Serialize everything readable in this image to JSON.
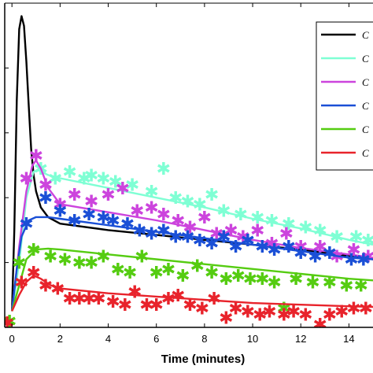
{
  "chart_data": {
    "type": "line",
    "xlabel": "Time (minutes)",
    "xlim": [
      -0.3,
      15
    ],
    "ylim": [
      0,
      100
    ],
    "xticks": [
      0,
      2,
      4,
      6,
      8,
      10,
      12,
      14
    ],
    "grid": false,
    "legend_position": "top-right",
    "series": [
      {
        "name": "C",
        "color": "#000000",
        "line": [
          [
            0,
            5
          ],
          [
            0.1,
            30
          ],
          [
            0.2,
            70
          ],
          [
            0.3,
            92
          ],
          [
            0.4,
            96
          ],
          [
            0.5,
            93
          ],
          [
            0.6,
            82
          ],
          [
            0.7,
            68
          ],
          [
            0.8,
            55
          ],
          [
            0.9,
            47
          ],
          [
            1.0,
            42
          ],
          [
            1.2,
            37
          ],
          [
            1.5,
            34
          ],
          [
            2,
            32
          ],
          [
            4,
            30
          ],
          [
            6,
            28.5
          ],
          [
            8,
            27
          ],
          [
            10,
            25.5
          ],
          [
            12,
            24
          ],
          [
            14,
            22
          ],
          [
            15,
            21
          ]
        ],
        "markers": []
      },
      {
        "name": "C",
        "color": "#7fffd4",
        "line": [
          [
            0,
            5
          ],
          [
            0.3,
            20
          ],
          [
            0.6,
            40
          ],
          [
            0.9,
            48
          ],
          [
            1.1,
            48.5
          ],
          [
            1.5,
            47
          ],
          [
            2,
            46
          ],
          [
            4,
            43
          ],
          [
            6,
            40
          ],
          [
            8,
            37
          ],
          [
            10,
            33.5
          ],
          [
            12,
            30.5
          ],
          [
            14,
            27
          ],
          [
            15,
            25.5
          ]
        ],
        "markers": [
          [
            1.2,
            49
          ],
          [
            1.8,
            46
          ],
          [
            2.4,
            48
          ],
          [
            3.0,
            46
          ],
          [
            3.3,
            47
          ],
          [
            3.8,
            46
          ],
          [
            4.3,
            45
          ],
          [
            5.0,
            44
          ],
          [
            5.8,
            42
          ],
          [
            6.3,
            49
          ],
          [
            6.8,
            40
          ],
          [
            7.3,
            39
          ],
          [
            7.8,
            38
          ],
          [
            8.3,
            41
          ],
          [
            8.8,
            36
          ],
          [
            9.5,
            35
          ],
          [
            10.2,
            34
          ],
          [
            10.8,
            33
          ],
          [
            11.5,
            32
          ],
          [
            12.2,
            31
          ],
          [
            12.8,
            30
          ],
          [
            13.5,
            28
          ],
          [
            14.3,
            28
          ],
          [
            14.8,
            27
          ]
        ]
      },
      {
        "name": "C",
        "color": "#cc44dd",
        "line": [
          [
            0,
            5
          ],
          [
            0.3,
            25
          ],
          [
            0.6,
            42
          ],
          [
            0.85,
            50
          ],
          [
            1.0,
            51.5
          ],
          [
            1.2,
            49
          ],
          [
            1.5,
            43
          ],
          [
            2,
            38
          ],
          [
            4,
            35.5
          ],
          [
            6,
            33
          ],
          [
            8,
            30
          ],
          [
            10,
            27
          ],
          [
            12,
            24.5
          ],
          [
            14,
            22.5
          ],
          [
            15,
            21.5
          ]
        ],
        "markers": [
          [
            0.6,
            46
          ],
          [
            1.0,
            53
          ],
          [
            1.4,
            44
          ],
          [
            2.0,
            38
          ],
          [
            2.6,
            41
          ],
          [
            3.3,
            39
          ],
          [
            4.0,
            41
          ],
          [
            4.6,
            43
          ],
          [
            5.2,
            36
          ],
          [
            5.8,
            37
          ],
          [
            6.3,
            35
          ],
          [
            6.9,
            33
          ],
          [
            7.4,
            31
          ],
          [
            8.0,
            34
          ],
          [
            8.5,
            29
          ],
          [
            9.1,
            30
          ],
          [
            9.6,
            28
          ],
          [
            10.2,
            30
          ],
          [
            10.8,
            26
          ],
          [
            11.4,
            29
          ],
          [
            12.0,
            25
          ],
          [
            12.8,
            25
          ],
          [
            13.5,
            22
          ],
          [
            14.2,
            24
          ],
          [
            14.8,
            22
          ]
        ]
      },
      {
        "name": "C",
        "color": "#1a4fd6",
        "line": [
          [
            0,
            5
          ],
          [
            0.2,
            18
          ],
          [
            0.4,
            28
          ],
          [
            0.7,
            33
          ],
          [
            1.0,
            34
          ],
          [
            1.5,
            34
          ],
          [
            2,
            33.5
          ],
          [
            4,
            31.5
          ],
          [
            6,
            29.5
          ],
          [
            8,
            27.5
          ],
          [
            10,
            25.5
          ],
          [
            12,
            23.5
          ],
          [
            14,
            21.5
          ],
          [
            15,
            21
          ]
        ],
        "markers": [
          [
            0.6,
            32
          ],
          [
            1.4,
            40
          ],
          [
            2.0,
            36
          ],
          [
            2.6,
            33
          ],
          [
            3.2,
            35
          ],
          [
            3.8,
            34
          ],
          [
            4.2,
            33
          ],
          [
            4.8,
            32
          ],
          [
            5.3,
            30
          ],
          [
            5.8,
            29
          ],
          [
            6.3,
            30
          ],
          [
            6.8,
            28
          ],
          [
            7.3,
            28
          ],
          [
            7.8,
            27
          ],
          [
            8.3,
            26
          ],
          [
            8.8,
            28
          ],
          [
            9.3,
            25
          ],
          [
            9.8,
            27
          ],
          [
            10.4,
            25
          ],
          [
            10.9,
            24
          ],
          [
            11.5,
            25
          ],
          [
            12.0,
            23
          ],
          [
            12.6,
            22
          ],
          [
            13.2,
            23
          ],
          [
            14.1,
            21
          ],
          [
            14.6,
            21
          ]
        ]
      },
      {
        "name": "C",
        "color": "#55cc11",
        "line": [
          [
            0,
            5
          ],
          [
            0.3,
            13
          ],
          [
            0.6,
            21
          ],
          [
            1.0,
            24
          ],
          [
            1.5,
            24.3
          ],
          [
            2,
            24
          ],
          [
            4,
            22.5
          ],
          [
            6,
            21
          ],
          [
            8,
            19.5
          ],
          [
            10,
            18
          ],
          [
            12,
            16.5
          ],
          [
            14,
            15
          ],
          [
            15,
            14.5
          ]
        ],
        "markers": [
          [
            -0.1,
            2
          ],
          [
            0.3,
            20
          ],
          [
            0.9,
            24
          ],
          [
            1.6,
            22
          ],
          [
            2.2,
            21
          ],
          [
            2.8,
            20
          ],
          [
            3.3,
            20
          ],
          [
            3.8,
            22
          ],
          [
            4.4,
            18
          ],
          [
            4.9,
            17
          ],
          [
            5.4,
            22
          ],
          [
            6.0,
            17
          ],
          [
            6.5,
            18
          ],
          [
            7.1,
            16
          ],
          [
            7.7,
            19
          ],
          [
            8.3,
            17
          ],
          [
            8.9,
            15
          ],
          [
            9.4,
            16
          ],
          [
            9.9,
            15
          ],
          [
            10.4,
            15
          ],
          [
            10.9,
            14
          ],
          [
            11.3,
            6
          ],
          [
            11.8,
            15
          ],
          [
            12.5,
            14
          ],
          [
            13.2,
            14
          ],
          [
            13.9,
            13
          ],
          [
            14.5,
            13
          ]
        ]
      },
      {
        "name": "C",
        "color": "#e8232b",
        "line": [
          [
            0,
            5
          ],
          [
            0.3,
            10
          ],
          [
            0.6,
            14
          ],
          [
            0.9,
            16
          ],
          [
            1.2,
            15
          ],
          [
            1.6,
            13
          ],
          [
            2,
            12
          ],
          [
            4,
            10.5
          ],
          [
            6,
            9.5
          ],
          [
            8,
            8.5
          ],
          [
            10,
            7.5
          ],
          [
            12,
            7
          ],
          [
            14,
            6.5
          ],
          [
            15,
            6.3
          ]
        ],
        "markers": [
          [
            -0.2,
            1.5
          ],
          [
            0.4,
            14
          ],
          [
            0.9,
            17
          ],
          [
            1.4,
            13
          ],
          [
            1.9,
            12
          ],
          [
            2.4,
            9
          ],
          [
            2.8,
            9
          ],
          [
            3.2,
            9
          ],
          [
            3.6,
            9
          ],
          [
            4.2,
            8
          ],
          [
            4.7,
            7
          ],
          [
            5.1,
            11
          ],
          [
            5.6,
            7
          ],
          [
            6.0,
            7
          ],
          [
            6.5,
            9
          ],
          [
            6.9,
            10
          ],
          [
            7.4,
            7
          ],
          [
            7.9,
            6
          ],
          [
            8.4,
            9
          ],
          [
            8.9,
            3
          ],
          [
            9.3,
            6
          ],
          [
            9.8,
            5
          ],
          [
            10.3,
            4
          ],
          [
            10.7,
            5
          ],
          [
            11.3,
            4
          ],
          [
            11.7,
            5
          ],
          [
            12.2,
            4
          ],
          [
            12.8,
            1
          ],
          [
            13.2,
            4
          ],
          [
            13.7,
            5
          ],
          [
            14.2,
            6
          ],
          [
            14.7,
            6
          ]
        ]
      }
    ]
  }
}
